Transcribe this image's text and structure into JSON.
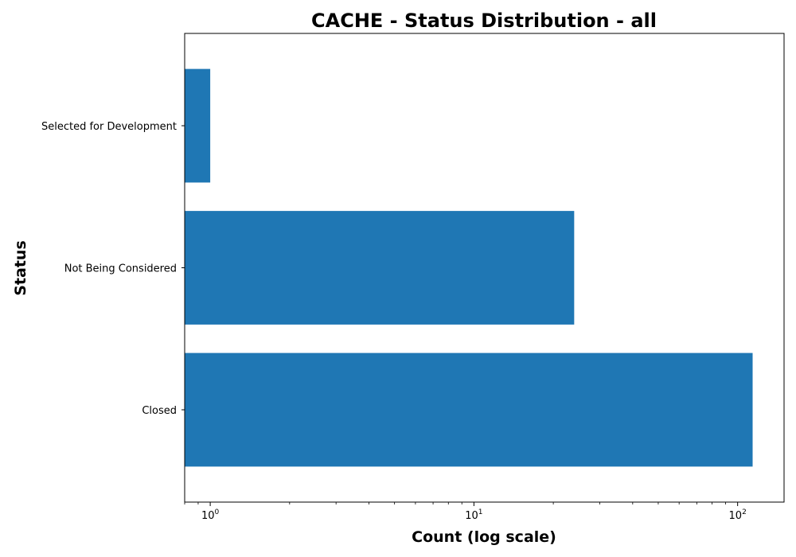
{
  "chart_data": {
    "type": "bar",
    "orientation": "horizontal",
    "title": "CACHE - Status Distribution - all",
    "xlabel": "Count (log scale)",
    "ylabel": "Status",
    "xscale": "log",
    "xlim": [
      0.8,
      150
    ],
    "x_ticks": [
      {
        "base": "10",
        "exp": "0",
        "value": 1
      },
      {
        "base": "10",
        "exp": "1",
        "value": 10
      },
      {
        "base": "10",
        "exp": "2",
        "value": 100
      }
    ],
    "categories": [
      "Closed",
      "Not Being Considered",
      "Selected for Development"
    ],
    "values": [
      114,
      24,
      1
    ],
    "bar_color": "#1f77b4",
    "grid": false,
    "legend": false
  }
}
